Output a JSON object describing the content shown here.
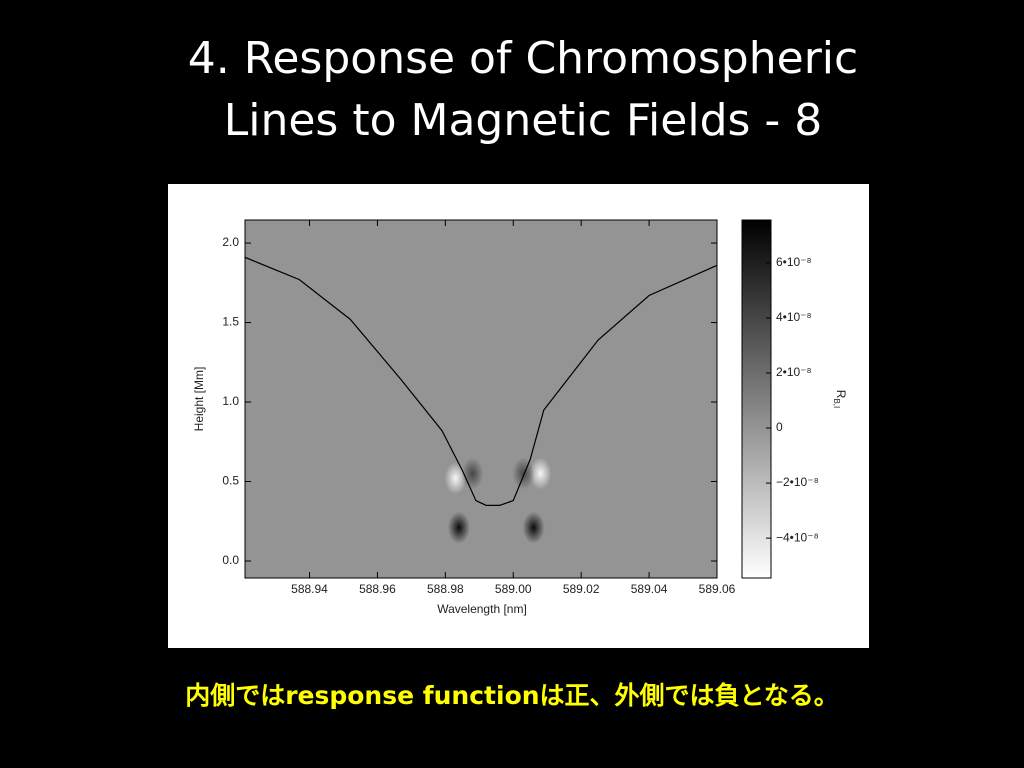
{
  "slide": {
    "title_lines": [
      "4. Response of Chromospheric",
      "Lines to Magnetic Fields - 8"
    ],
    "caption": "内側ではresponse functionは正、外側では負となる。"
  },
  "chart_data": {
    "type": "heatmap",
    "x_label": "Wavelength [nm]",
    "y_label": "Height [Mm]",
    "xlim": [
      588.921,
      589.06
    ],
    "ylim": [
      -0.107,
      2.145
    ],
    "xticks": [
      588.94,
      588.96,
      588.98,
      {
        "value": 589,
        "label": "589.00"
      },
      589.02,
      589.04,
      589.06
    ],
    "yticks": [
      {
        "value": 0,
        "label": "0.0"
      },
      0.5,
      {
        "value": 1,
        "label": "1.0"
      },
      1.5,
      {
        "value": 2,
        "label": "2.0"
      }
    ],
    "curve": {
      "color": "#000000",
      "x": [
        588.921,
        588.937,
        588.952,
        588.967,
        588.979,
        588.985,
        588.989,
        588.992,
        588.996,
        589.0,
        589.005,
        589.009,
        589.025,
        589.04,
        589.06
      ],
      "y": [
        1.91,
        1.77,
        1.52,
        1.14,
        0.82,
        0.57,
        0.38,
        0.35,
        0.35,
        0.38,
        0.64,
        0.95,
        1.39,
        1.67,
        1.86
      ]
    },
    "features": {
      "x": [
        588.984,
        589.006,
        588.983,
        589.008,
        588.988,
        589.003
      ],
      "y": [
        0.21,
        0.21,
        0.52,
        0.55,
        0.55,
        0.55
      ],
      "values": [
        7e-08,
        7e-08,
        -5e-08,
        -5e-08,
        4e-08,
        4e-08
      ]
    },
    "colorbar_label": "R",
    "colorbar_label_sub": "B,I",
    "clim": [
      -5.45e-08,
      7.56e-08
    ],
    "cticks": [
      {
        "value": -4e-08,
        "label": "−4•10⁻⁸"
      },
      {
        "value": -2e-08,
        "label": "−2•10⁻⁸"
      },
      0,
      {
        "value": 2e-08,
        "label": "2•10⁻⁸"
      },
      {
        "value": 4e-08,
        "label": "4•10⁻⁸"
      },
      {
        "value": 6e-08,
        "label": "6•10⁻⁸"
      }
    ]
  }
}
